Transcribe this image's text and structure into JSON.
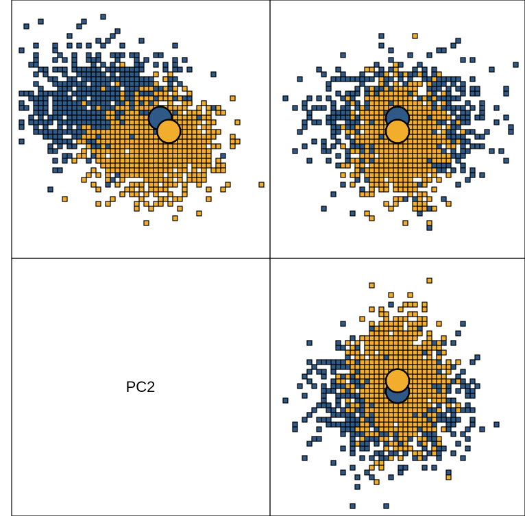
{
  "chart_data": {
    "type": "scatter",
    "layout": "pairs-matrix",
    "title": "",
    "diagonal_labels": [
      "PC2"
    ],
    "colors": {
      "group_a": "#2f5a87",
      "group_b": "#f2ad2c",
      "outline": "#000000"
    },
    "panels": [
      {
        "id": "upper-left",
        "group_a_cloud": {
          "center": [
            -0.9,
            0.6
          ],
          "spread": [
            1.7,
            1.2
          ]
        },
        "group_b_cloud": {
          "center": [
            0.3,
            -0.3
          ],
          "spread": [
            1.3,
            1.0
          ]
        },
        "centroids": [
          {
            "group": "group_a",
            "x": 0.45,
            "y": 0.25
          },
          {
            "group": "group_b",
            "x": 0.65,
            "y": -0.05
          }
        ]
      },
      {
        "id": "upper-right",
        "group_a_cloud": {
          "center": [
            0.0,
            0.2
          ],
          "spread": [
            1.8,
            1.2
          ]
        },
        "group_b_cloud": {
          "center": [
            0.0,
            -0.2
          ],
          "spread": [
            0.9,
            1.1
          ]
        },
        "centroids": [
          {
            "group": "group_a",
            "x": 0.0,
            "y": 0.25
          },
          {
            "group": "group_b",
            "x": 0.0,
            "y": -0.05
          }
        ]
      },
      {
        "id": "lower-right",
        "group_a_cloud": {
          "center": [
            -0.2,
            -0.3
          ],
          "spread": [
            1.6,
            1.3
          ]
        },
        "group_b_cloud": {
          "center": [
            0.0,
            0.2
          ],
          "spread": [
            0.9,
            1.3
          ]
        },
        "centroids": [
          {
            "group": "group_a",
            "x": 0.0,
            "y": -0.1
          },
          {
            "group": "group_b",
            "x": 0.0,
            "y": 0.15
          }
        ]
      }
    ],
    "grid": false,
    "legend": "none"
  }
}
